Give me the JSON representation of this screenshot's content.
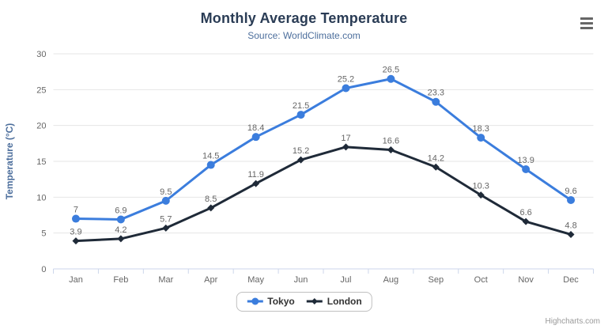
{
  "credits": "Highcharts.com",
  "theme": {
    "background": "#ffffff",
    "title_color": "#2a3c55",
    "subtitle_color": "#4c6e9c",
    "axis_title_color": "#4c6e9c",
    "tick_label_color": "#666666",
    "data_label_color": "#666666",
    "grid_color": "#e6e6e6",
    "axis_line_color": "#ccd6eb",
    "legend_text_color": "#333333",
    "legend_border_color": "#bfbfbf",
    "credits_color": "#999999",
    "menu_icon_color": "#666666"
  },
  "chart_data": {
    "type": "line",
    "title": "Monthly Average Temperature",
    "subtitle": "Source: WorldClimate.com",
    "categories": [
      "Jan",
      "Feb",
      "Mar",
      "Apr",
      "May",
      "Jun",
      "Jul",
      "Aug",
      "Sep",
      "Oct",
      "Nov",
      "Dec"
    ],
    "series": [
      {
        "name": "Tokyo",
        "color": "#3b7ddd",
        "marker": "circle",
        "values": [
          7,
          6.9,
          9.5,
          14.5,
          18.4,
          21.5,
          25.2,
          26.5,
          23.3,
          18.3,
          13.9,
          9.6
        ]
      },
      {
        "name": "London",
        "color": "#1f2a38",
        "marker": "diamond",
        "values": [
          3.9,
          4.2,
          5.7,
          8.5,
          11.9,
          15.2,
          17,
          16.6,
          14.2,
          10.3,
          6.6,
          4.8
        ]
      }
    ],
    "xlabel": "",
    "ylabel": "Temperature (°C)",
    "ylim": [
      0,
      30
    ],
    "ytick_interval": 5,
    "grid": true,
    "data_labels": true,
    "legend_position": "bottom"
  }
}
